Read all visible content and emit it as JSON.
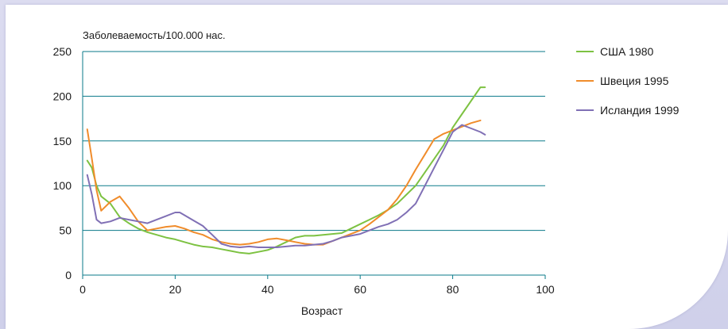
{
  "chart_data": {
    "type": "line",
    "ylabel": "Заболеваемость/100.000 нас.",
    "xlabel": "Возраст",
    "xlim": [
      0,
      100
    ],
    "ylim": [
      0,
      250
    ],
    "x_ticks": [
      0,
      20,
      40,
      60,
      80,
      100
    ],
    "y_ticks": [
      0,
      50,
      100,
      150,
      200,
      250
    ],
    "grid": "horizontal",
    "legend_position": "right",
    "axis_color": "#0a7a8a",
    "series": [
      {
        "name": "США 1980",
        "color": "#7dc242",
        "x": [
          1,
          2,
          3,
          4,
          6,
          8,
          10,
          12,
          14,
          16,
          18,
          20,
          22,
          24,
          26,
          28,
          30,
          32,
          34,
          36,
          38,
          40,
          42,
          44,
          46,
          48,
          50,
          52,
          54,
          56,
          58,
          60,
          62,
          64,
          66,
          68,
          70,
          72,
          74,
          76,
          78,
          80,
          82,
          84,
          86,
          87
        ],
        "values": [
          128,
          120,
          100,
          88,
          80,
          65,
          58,
          52,
          48,
          45,
          42,
          40,
          37,
          34,
          32,
          31,
          29,
          27,
          25,
          24,
          26,
          28,
          32,
          37,
          42,
          44,
          44,
          45,
          46,
          47,
          52,
          57,
          62,
          67,
          73,
          80,
          90,
          100,
          115,
          130,
          145,
          165,
          180,
          195,
          210,
          210
        ]
      },
      {
        "name": "Швеция 1995",
        "color": "#f08c2b",
        "x": [
          1,
          2,
          3,
          4,
          6,
          8,
          10,
          12,
          14,
          16,
          18,
          20,
          22,
          24,
          26,
          28,
          30,
          32,
          34,
          36,
          38,
          40,
          42,
          44,
          46,
          48,
          50,
          52,
          54,
          56,
          58,
          60,
          62,
          64,
          66,
          68,
          70,
          72,
          74,
          76,
          78,
          80,
          82,
          84,
          86
        ],
        "values": [
          163,
          130,
          95,
          72,
          82,
          88,
          75,
          60,
          50,
          52,
          54,
          55,
          52,
          48,
          45,
          40,
          37,
          35,
          34,
          35,
          37,
          40,
          41,
          39,
          37,
          35,
          34,
          34,
          38,
          42,
          46,
          50,
          57,
          65,
          73,
          85,
          100,
          118,
          135,
          152,
          158,
          162,
          166,
          170,
          173
        ]
      },
      {
        "name": "Исландия 1999",
        "color": "#8070b5",
        "x": [
          1,
          2,
          3,
          4,
          6,
          8,
          10,
          12,
          14,
          16,
          18,
          20,
          21,
          22,
          24,
          26,
          28,
          30,
          32,
          34,
          36,
          38,
          40,
          42,
          44,
          46,
          48,
          50,
          52,
          54,
          56,
          58,
          60,
          62,
          64,
          66,
          68,
          70,
          72,
          74,
          76,
          78,
          80,
          82,
          84,
          86,
          87
        ],
        "values": [
          112,
          90,
          62,
          58,
          60,
          64,
          62,
          60,
          58,
          62,
          66,
          70,
          70,
          67,
          61,
          55,
          45,
          35,
          32,
          31,
          32,
          31,
          31,
          31,
          32,
          33,
          33,
          34,
          35,
          38,
          42,
          44,
          46,
          50,
          54,
          57,
          62,
          70,
          80,
          100,
          120,
          140,
          160,
          168,
          164,
          160,
          157
        ]
      }
    ]
  }
}
